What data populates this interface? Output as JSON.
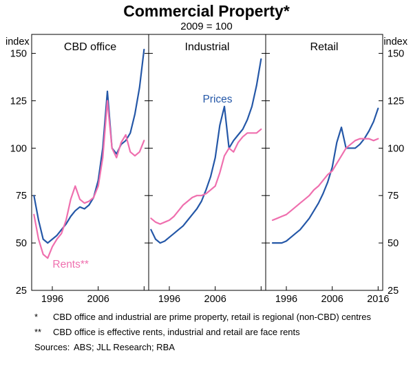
{
  "chart_data": {
    "type": "line",
    "title": "Commercial Property*",
    "subtitle": "2009 = 100",
    "y_unit_label": "index",
    "ylim": [
      25,
      160
    ],
    "yticks": [
      25,
      50,
      75,
      100,
      125,
      150
    ],
    "xlim": [
      1991.5,
      2017
    ],
    "grid": false,
    "colors": {
      "prices": "#2457a7",
      "rents": "#ef6fae"
    },
    "panels": [
      {
        "title": "CBD office",
        "xticks": [
          1996,
          2006,
          2016
        ],
        "xtick_labels": [
          "1996",
          "2006"
        ],
        "series": [
          {
            "name": "Prices",
            "color_key": "prices",
            "x_start": 1992,
            "values": [
              75,
              62,
              52,
              50,
              52,
              54,
              57,
              60,
              64,
              67,
              69,
              68,
              70,
              74,
              83,
              100,
              130,
              100,
              97,
              102,
              104,
              108,
              118,
              132,
              152
            ]
          },
          {
            "name": "Rents",
            "color_key": "rents",
            "x_start": 1992,
            "values": [
              65,
              52,
              44,
              42,
              48,
              52,
              55,
              62,
              73,
              80,
              73,
              71,
              72,
              74,
              80,
              95,
              125,
              100,
              95,
              103,
              107,
              98,
              96,
              98,
              104
            ]
          }
        ]
      },
      {
        "title": "Industrial",
        "xticks": [
          1996,
          2006,
          2016
        ],
        "xtick_labels": [
          "1996",
          "2006"
        ],
        "series": [
          {
            "name": "Prices",
            "color_key": "prices",
            "x_start": 1992,
            "values": [
              57,
              52,
              50,
              51,
              53,
              55,
              57,
              59,
              62,
              65,
              68,
              72,
              78,
              85,
              95,
              112,
              122,
              100,
              104,
              107,
              110,
              115,
              122,
              133,
              147
            ]
          },
          {
            "name": "Rents",
            "color_key": "rents",
            "x_start": 1992,
            "values": [
              63,
              61,
              60,
              61,
              62,
              64,
              67,
              70,
              72,
              74,
              75,
              75,
              76,
              78,
              80,
              87,
              96,
              100,
              98,
              103,
              106,
              108,
              108,
              108,
              110
            ]
          }
        ]
      },
      {
        "title": "Retail",
        "xticks": [
          1996,
          2006,
          2016
        ],
        "xtick_labels": [
          "1996",
          "2006",
          "2016"
        ],
        "series": [
          {
            "name": "Prices",
            "color_key": "prices",
            "x_start": 1993,
            "values": [
              50,
              50,
              50,
              51,
              53,
              55,
              57,
              60,
              63,
              67,
              71,
              76,
              82,
              90,
              103,
              111,
              100,
              100,
              100,
              102,
              105,
              109,
              114,
              121
            ]
          },
          {
            "name": "Rents",
            "color_key": "rents",
            "x_start": 1993,
            "values": [
              62,
              63,
              64,
              65,
              67,
              69,
              71,
              73,
              75,
              78,
              80,
              83,
              86,
              88,
              92,
              96,
              100,
              102,
              104,
              105,
              105,
              105,
              104,
              105
            ]
          }
        ]
      }
    ],
    "annotations": [
      {
        "text": "Prices",
        "panel": 1,
        "x": 2006.5,
        "y": 124,
        "color_key": "prices"
      },
      {
        "text": "Rents**",
        "panel": 0,
        "x": 2000,
        "y": 37,
        "color_key": "rents"
      }
    ],
    "legend_position": "in-plot-annotations"
  },
  "footnotes": [
    {
      "marker": "*",
      "text": "CBD office and industrial are prime property, retail is regional (non-CBD) centres"
    },
    {
      "marker": "**",
      "text": "CBD office is effective rents, industrial and retail are face rents"
    }
  ],
  "sources": {
    "label": "Sources:",
    "text": "ABS; JLL Research; RBA"
  }
}
